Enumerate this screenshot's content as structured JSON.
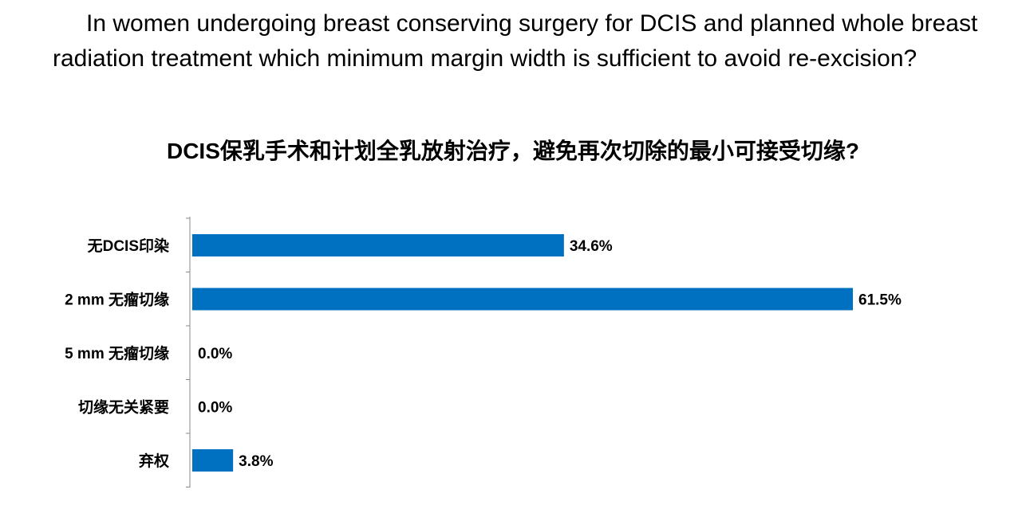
{
  "question": "In women undergoing breast conserving surgery for DCIS and planned whole breast radiation treatment which minimum margin width is sufficient to avoid re-excision?",
  "chart_data": {
    "type": "bar",
    "orientation": "horizontal",
    "title": "DCIS保乳手术和计划全乳放射治疗，避免再次切除的最小可接受切缘?",
    "categories": [
      "无DCIS印染",
      "2 mm 无瘤切缘",
      "5 mm 无瘤切缘",
      "切缘无关紧要",
      "弃权"
    ],
    "values": [
      34.6,
      61.5,
      0.0,
      0.0,
      3.8
    ],
    "value_labels": [
      "34.6%",
      "61.5%",
      "0.0%",
      "0.0%",
      "3.8%"
    ],
    "unit": "%",
    "xlim": [
      0,
      61.5
    ],
    "bar_color": "#0070c0",
    "grid": false,
    "legend": "none"
  }
}
